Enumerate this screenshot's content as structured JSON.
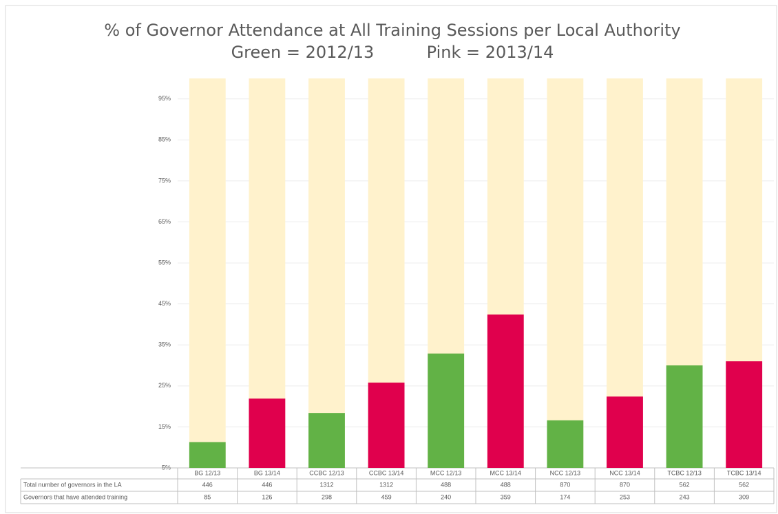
{
  "chart_data": {
    "type": "bar",
    "title": "% of Governor Attendance at All Training Sessions per Local Authority",
    "subtitle": "Green = 2012/13          Pink = 2013/14",
    "categories": [
      "BG 12/13",
      "BG 13/14",
      "CCBC 12/13",
      "CCBC 13/14",
      "MCC 12/13",
      "MCC 13/14",
      "NCC 12/13",
      "NCC 13/14",
      "TCBC 12/13",
      "TCBC 13/14"
    ],
    "values": [
      11.3,
      21.9,
      18.4,
      25.8,
      32.9,
      42.4,
      16.6,
      22.4,
      30,
      31
    ],
    "colors": [
      "#62b246",
      "#e0004d",
      "#62b246",
      "#e0004d",
      "#62b246",
      "#e0004d",
      "#62b246",
      "#e0004d",
      "#62b246",
      "#e0004d"
    ],
    "background_values": [
      100,
      100,
      100,
      100,
      100,
      100,
      100,
      100,
      100,
      100
    ],
    "background_color": "#fff2cc",
    "ylim": [
      5,
      101
    ],
    "yticks": [
      {
        "value": 5,
        "label": "5%"
      },
      {
        "value": 15,
        "label": "15%"
      },
      {
        "value": 25,
        "label": "25%"
      },
      {
        "value": 35,
        "label": "35%"
      },
      {
        "value": 45,
        "label": "45%"
      },
      {
        "value": 55,
        "label": "55%"
      },
      {
        "value": 65,
        "label": "65%"
      },
      {
        "value": 75,
        "label": "75%"
      },
      {
        "value": 85,
        "label": "85%"
      },
      {
        "value": 95,
        "label": "95%"
      }
    ],
    "grid": true,
    "table": {
      "rows": [
        {
          "label": "Total number of governors in the LA",
          "values": [
            "446",
            "446",
            "1312",
            "1312",
            "488",
            "488",
            "870",
            "870",
            "562",
            "562"
          ]
        },
        {
          "label": "Governors that have attended training",
          "values": [
            "85",
            "126",
            "298",
            "459",
            "240",
            "359",
            "174",
            "253",
            "243",
            "309"
          ]
        }
      ]
    }
  }
}
